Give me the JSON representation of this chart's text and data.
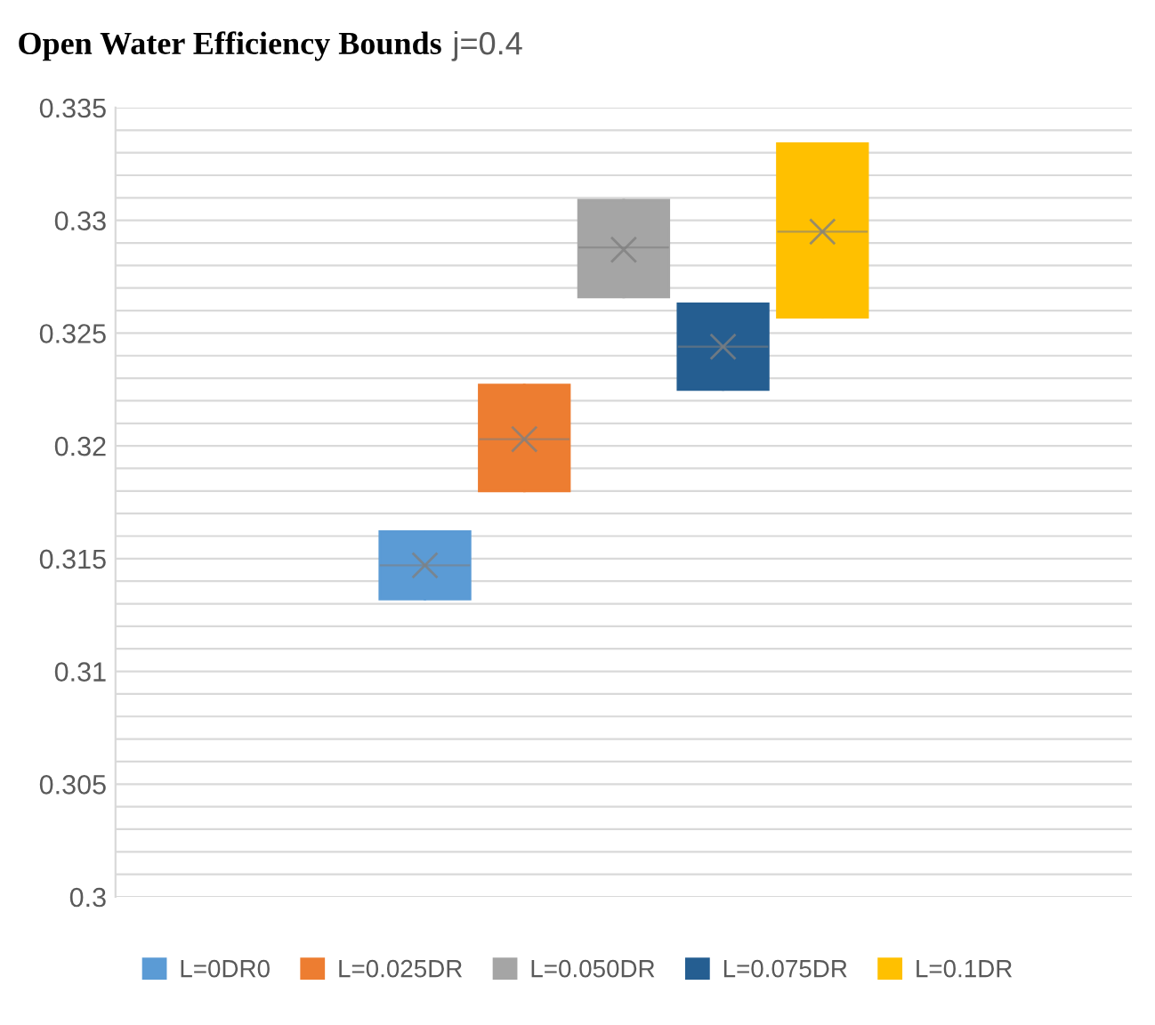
{
  "chart_data": {
    "type": "box",
    "title": "Open Water Efficiency Bounds",
    "subtitle": "j=0.4",
    "categories": [
      null
    ],
    "series": [
      {
        "name": "L=0DR0",
        "color": "#5b9bd5",
        "boxes": [
          {
            "low": 0.3132,
            "q1": 0.3132,
            "median": 0.3147,
            "q3": 0.3162,
            "high": 0.3162,
            "mean": 0.3147
          }
        ]
      },
      {
        "name": "L=0.025DR",
        "color": "#ed7d31",
        "boxes": [
          {
            "low": 0.318,
            "q1": 0.318,
            "median": 0.3203,
            "q3": 0.3227,
            "high": 0.3227,
            "mean": 0.3203
          }
        ]
      },
      {
        "name": "L=0.050DR",
        "color": "#a5a5a5",
        "boxes": [
          {
            "low": 0.3266,
            "q1": 0.3266,
            "median": 0.3288,
            "q3": 0.3309,
            "high": 0.3309,
            "mean": 0.3287
          }
        ]
      },
      {
        "name": "L=0.075DR",
        "color": "#255e91",
        "boxes": [
          {
            "low": 0.3225,
            "q1": 0.3225,
            "median": 0.3244,
            "q3": 0.3263,
            "high": 0.3263,
            "mean": 0.3244
          }
        ]
      },
      {
        "name": "L=0.1DR",
        "color": "#ffc000",
        "boxes": [
          {
            "low": 0.3257,
            "q1": 0.3257,
            "median": 0.3295,
            "q3": 0.3334,
            "high": 0.3334,
            "mean": 0.3295
          }
        ]
      }
    ],
    "ylim": [
      0.3,
      0.335
    ],
    "yticks": [
      0.3,
      {
        "value": 0.301,
        "label": null
      },
      {
        "value": 0.302,
        "label": null
      },
      {
        "value": 0.303,
        "label": null
      },
      {
        "value": 0.304,
        "label": null
      },
      0.305,
      {
        "value": 0.306,
        "label": null
      },
      {
        "value": 0.307,
        "label": null
      },
      {
        "value": 0.308,
        "label": null
      },
      {
        "value": 0.309,
        "label": null
      },
      0.31,
      {
        "value": 0.311,
        "label": null
      },
      {
        "value": 0.312,
        "label": null
      },
      {
        "value": 0.313,
        "label": null
      },
      {
        "value": 0.314,
        "label": null
      },
      0.315,
      {
        "value": 0.316,
        "label": null
      },
      {
        "value": 0.317,
        "label": null
      },
      {
        "value": 0.318,
        "label": null
      },
      {
        "value": 0.319,
        "label": null
      },
      0.32,
      {
        "value": 0.321,
        "label": null
      },
      {
        "value": 0.322,
        "label": null
      },
      {
        "value": 0.323,
        "label": null
      },
      {
        "value": 0.324,
        "label": null
      },
      0.325,
      {
        "value": 0.326,
        "label": null
      },
      {
        "value": 0.327,
        "label": null
      },
      {
        "value": 0.328,
        "label": null
      },
      {
        "value": 0.329,
        "label": null
      },
      0.33,
      {
        "value": 0.331,
        "label": null
      },
      {
        "value": 0.332,
        "label": null
      },
      {
        "value": 0.333,
        "label": null
      },
      {
        "value": 0.334,
        "label": null
      },
      0.335
    ],
    "grid": "y",
    "legend": "bottom",
    "marker": "cross"
  }
}
